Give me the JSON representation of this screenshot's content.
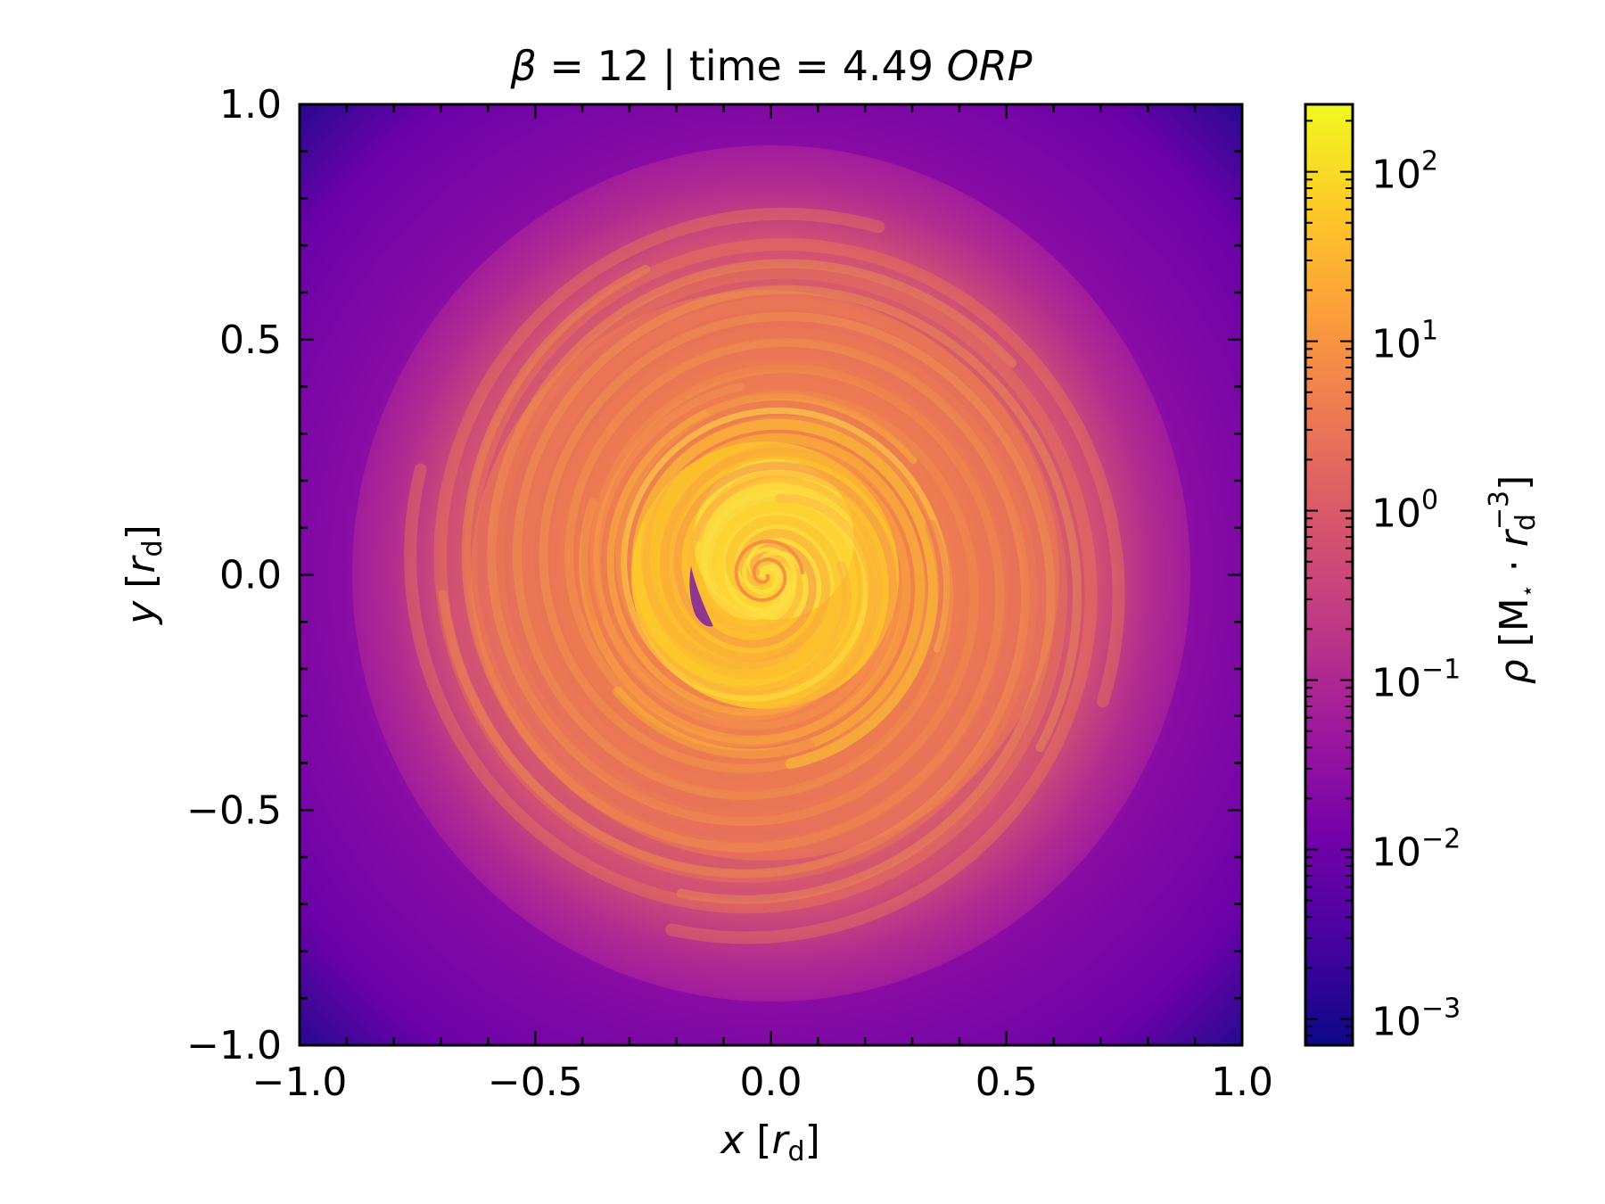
{
  "chart_data": {
    "type": "heatmap",
    "title_parts": {
      "beta_symbol": "β",
      "beta_rest": " = 12 | time = 4.49 ",
      "unit": "ORP"
    },
    "xlabel": {
      "var": "x",
      "open": " [",
      "r": "r",
      "sub": "d",
      "close": "]"
    },
    "ylabel": {
      "var": "y",
      "open": " [",
      "r": "r",
      "sub": "d",
      "close": "]"
    },
    "colorbar_label": {
      "rho": "ρ",
      "open": " [M",
      "star": "⋆",
      "dot": " · ",
      "r": "r",
      "sub": "d",
      "sup": "−3",
      "close": "]"
    },
    "xlim": [
      -1.0,
      1.0
    ],
    "ylim": [
      -1.0,
      1.0
    ],
    "x_ticks": [
      -1.0,
      -0.5,
      0.0,
      0.5,
      1.0
    ],
    "y_ticks": [
      -1.0,
      -0.5,
      0.0,
      0.5,
      1.0
    ],
    "x_tick_labels": [
      "−1.0",
      "−0.5",
      "0.0",
      "0.5",
      "1.0"
    ],
    "y_tick_labels": [
      "−1.0",
      "−0.5",
      "0.0",
      "0.5",
      "1.0"
    ],
    "colorbar": {
      "scale": "log",
      "colormap": "plasma",
      "vmin": 0.0007,
      "vmax": 250,
      "ticks": [
        {
          "value": 0.001,
          "base": "10",
          "exp": "−3"
        },
        {
          "value": 0.01,
          "base": "10",
          "exp": "−2"
        },
        {
          "value": 0.1,
          "base": "10",
          "exp": "−1"
        },
        {
          "value": 1,
          "base": "10",
          "exp": "0"
        },
        {
          "value": 10,
          "base": "10",
          "exp": "1"
        },
        {
          "value": 100,
          "base": "10",
          "exp": "2"
        }
      ]
    },
    "colors": {
      "plasma": [
        "#0d0887",
        "#46039f",
        "#7201a8",
        "#9c179e",
        "#bd3786",
        "#d8576b",
        "#ed7953",
        "#fb9f3a",
        "#fdca26",
        "#f0f921"
      ]
    },
    "field_description": {
      "background_min_density": 0.001,
      "disk_density": 0.3,
      "center_density": 150,
      "spiral_arms": true
    }
  }
}
